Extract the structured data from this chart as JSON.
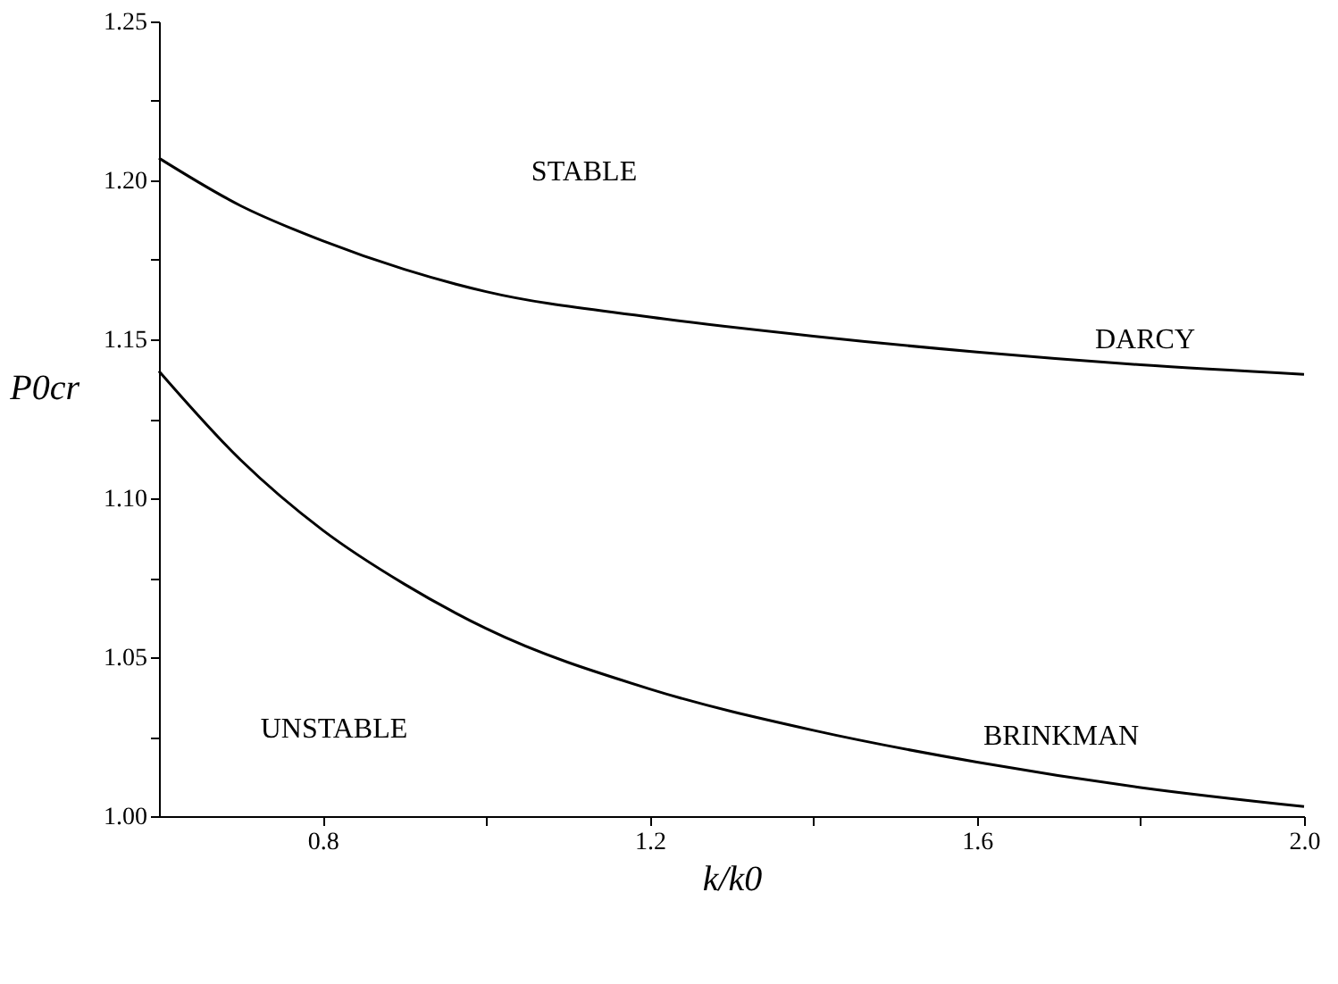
{
  "chart_data": {
    "type": "line",
    "xlabel": "k/k0",
    "ylabel": "P0cr",
    "x": [
      0.6,
      0.7,
      0.8,
      0.9,
      1.0,
      1.2,
      1.4,
      1.6,
      1.8,
      2.0
    ],
    "series": [
      {
        "name": "DARCY",
        "color": "#000000",
        "values": [
          1.207,
          1.192,
          1.181,
          1.172,
          1.165,
          1.157,
          1.151,
          1.146,
          1.142,
          1.139
        ]
      },
      {
        "name": "BRINKMAN",
        "color": "#000000",
        "values": [
          1.14,
          1.112,
          1.09,
          1.073,
          1.059,
          1.04,
          1.027,
          1.017,
          1.009,
          1.003
        ]
      }
    ],
    "xlim": [
      0.6,
      2.0
    ],
    "ylim": [
      1.0,
      1.25
    ],
    "xticks": [
      0.8,
      {
        "value": 1.0,
        "label": null
      },
      1.2,
      {
        "value": 1.4,
        "label": null
      },
      1.6,
      {
        "value": 1.8,
        "label": null
      },
      {
        "value": 2.0,
        "label": "2.0"
      }
    ],
    "yticks": [
      {
        "value": 1.0,
        "label": "1.00"
      },
      {
        "value": 1.025,
        "label": null
      },
      {
        "value": 1.05,
        "label": "1.05"
      },
      {
        "value": 1.075,
        "label": null
      },
      {
        "value": 1.1,
        "label": "1.10"
      },
      {
        "value": 1.125,
        "label": null
      },
      {
        "value": 1.15,
        "label": "1.15"
      },
      {
        "value": 1.175,
        "label": null
      },
      {
        "value": 1.2,
        "label": "1.20"
      },
      {
        "value": 1.225,
        "label": null
      },
      {
        "value": 1.25,
        "label": "1.25"
      }
    ],
    "annotations": [
      "STABLE",
      "UNSTABLE"
    ],
    "grid": false,
    "legend": false,
    "marker": "none",
    "line_style": "solid"
  }
}
